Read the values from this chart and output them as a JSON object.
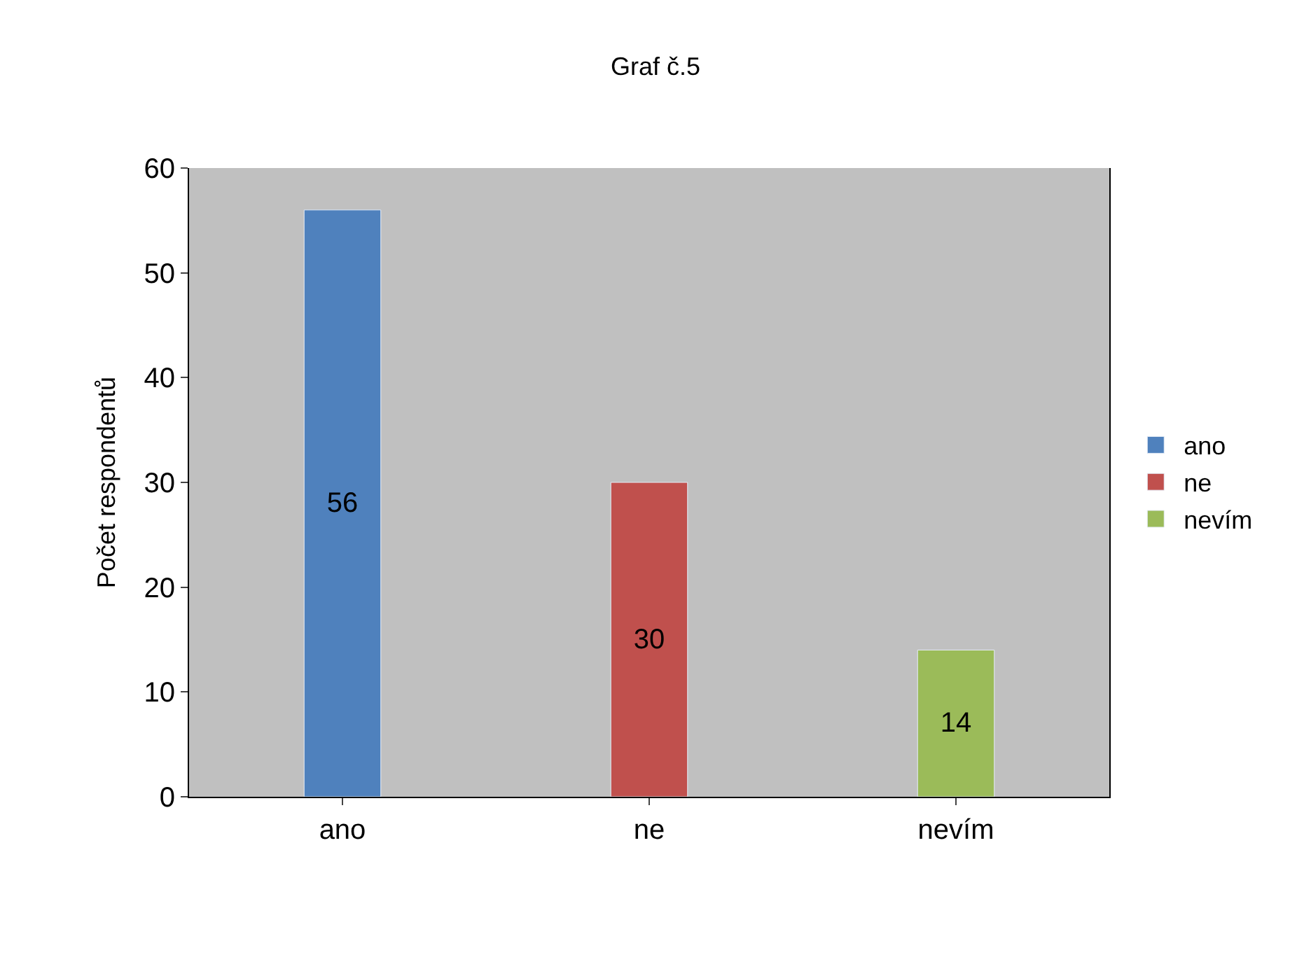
{
  "chart_data": {
    "type": "bar",
    "title": "Graf č.5",
    "ylabel": "Počet respondentů",
    "categories": [
      "ano",
      "ne",
      "nevím"
    ],
    "series": [
      {
        "name": "ano",
        "color": "#4f81bd",
        "values": [
          56,
          null,
          null
        ]
      },
      {
        "name": "ne",
        "color": "#c0504d",
        "values": [
          null,
          30,
          null
        ]
      },
      {
        "name": "nevím",
        "color": "#9bbb59",
        "values": [
          null,
          null,
          14
        ]
      }
    ],
    "ylim": [
      0,
      60
    ],
    "yticks": [
      0,
      10,
      20,
      30,
      40,
      50,
      60
    ],
    "data_labels": true,
    "legend": "right",
    "grid": false
  }
}
